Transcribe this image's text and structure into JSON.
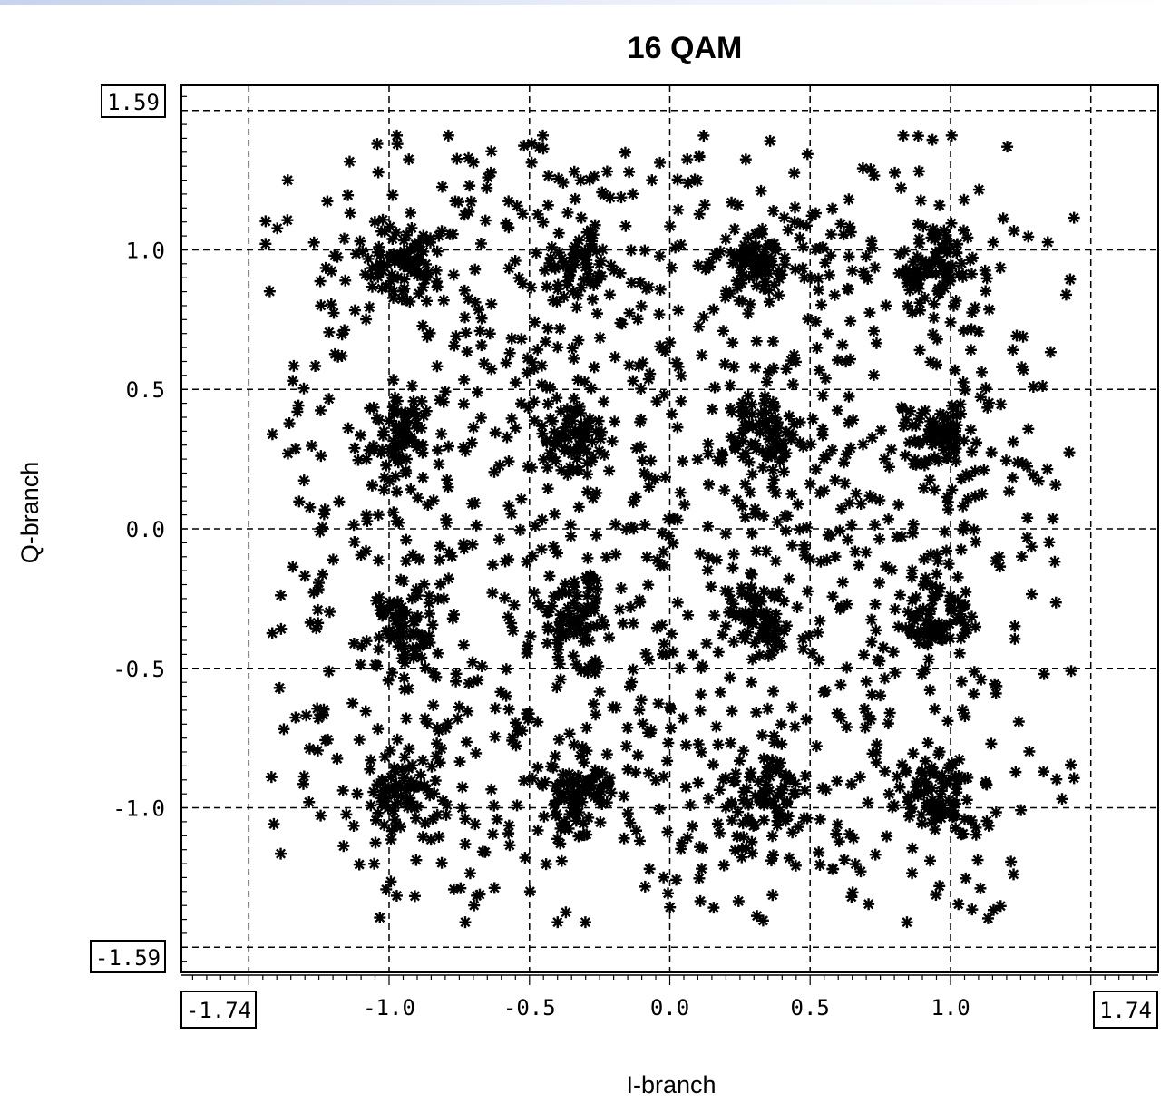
{
  "chart_data": {
    "type": "scatter",
    "title": "16 QAM",
    "xlabel": "I-branch",
    "ylabel": "Q-branch",
    "xlim": [
      -1.74,
      1.74
    ],
    "ylim": [
      -1.59,
      1.59
    ],
    "xlim_labels": [
      "-1.74",
      "1.74"
    ],
    "ylim_labels": [
      "-1.59",
      "1.59"
    ],
    "x_ticks": [
      "-1.0",
      "-0.5",
      "0.0",
      "0.5",
      "1.0"
    ],
    "y_ticks": [
      "1.0",
      "0.5",
      "0.0",
      "-0.5",
      "-1.0"
    ],
    "x_tick_values": [
      -1.0,
      -0.5,
      0.0,
      0.5,
      1.0
    ],
    "y_tick_values": [
      1.0,
      0.5,
      0.0,
      -0.5,
      -1.0
    ],
    "x_grid_values": [
      -1.5,
      -1.0,
      -0.5,
      0.0,
      0.5,
      1.0,
      1.5
    ],
    "y_grid_values": [
      1.5,
      1.0,
      0.5,
      0.0,
      -0.5,
      -1.0,
      -1.5
    ],
    "grid": true,
    "marker": "*",
    "marker_color": "#000000",
    "constellation_points": [
      {
        "i": -0.95,
        "q": 0.95
      },
      {
        "i": -0.33,
        "q": 0.95
      },
      {
        "i": 0.33,
        "q": 0.95
      },
      {
        "i": 0.95,
        "q": 0.95
      },
      {
        "i": -0.95,
        "q": 0.33
      },
      {
        "i": -0.33,
        "q": 0.33
      },
      {
        "i": 0.33,
        "q": 0.33
      },
      {
        "i": 0.95,
        "q": 0.33
      },
      {
        "i": -0.95,
        "q": -0.33
      },
      {
        "i": -0.33,
        "q": -0.33
      },
      {
        "i": 0.33,
        "q": -0.33
      },
      {
        "i": 0.95,
        "q": -0.33
      },
      {
        "i": -0.95,
        "q": -0.95
      },
      {
        "i": -0.33,
        "q": -0.95
      },
      {
        "i": 0.33,
        "q": -0.95
      },
      {
        "i": 0.95,
        "q": -0.95
      }
    ],
    "samples_per_symbol": 150,
    "scatter_extent": 0.5
  }
}
